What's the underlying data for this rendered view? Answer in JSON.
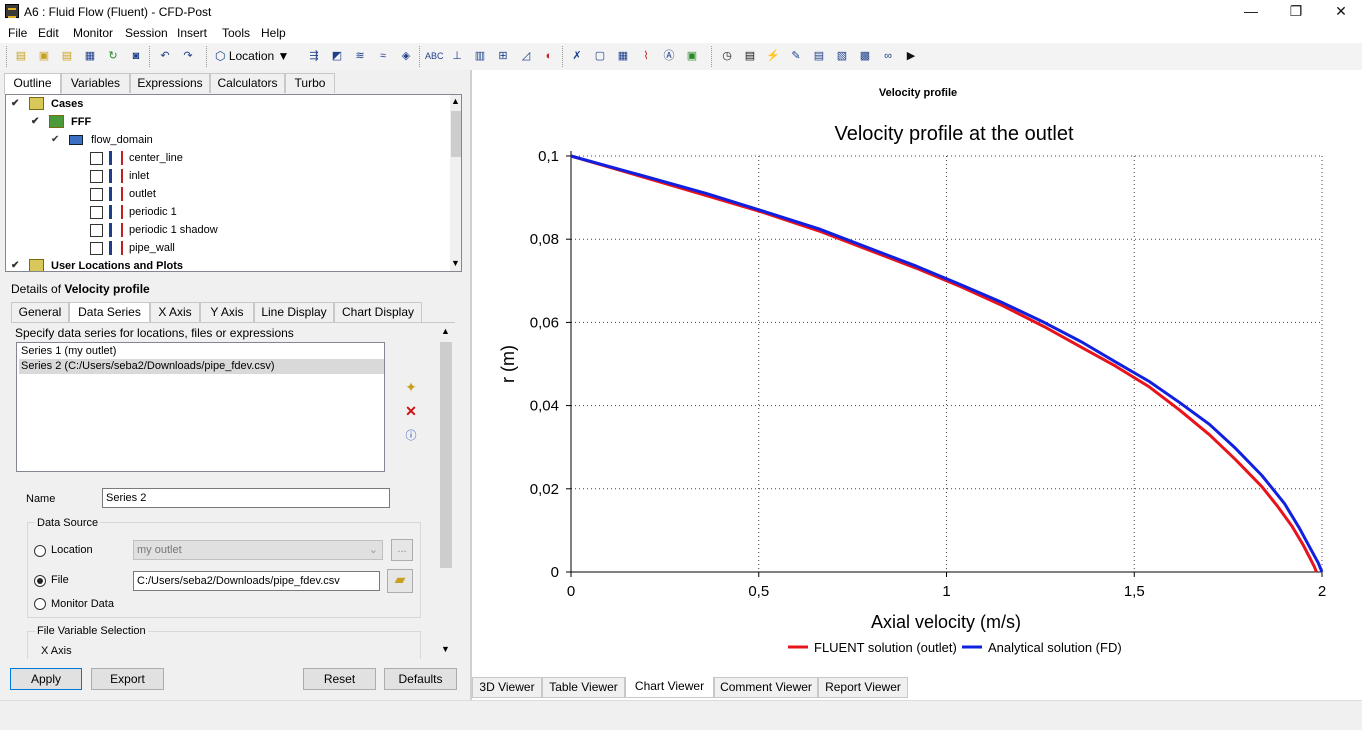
{
  "window": {
    "title": "A6 : Fluid Flow (Fluent) - CFD-Post",
    "minimize": "—",
    "restore": "❐",
    "close": "✕"
  },
  "menu": [
    "File",
    "Edit",
    "Monitor",
    "Session",
    "Insert",
    "Tools",
    "Help"
  ],
  "toolbar": {
    "location_label": "Location"
  },
  "outline_tabs": [
    "Outline",
    "Variables",
    "Expressions",
    "Calculators",
    "Turbo"
  ],
  "tree": {
    "cases": "Cases",
    "case_name": "FFF",
    "domain": "flow_domain",
    "locations": [
      "center_line",
      "inlet",
      "outlet",
      "periodic 1",
      "periodic 1 shadow",
      "pipe_wall"
    ],
    "user_locations": "User Locations and Plots"
  },
  "details": {
    "prefix": "Details of ",
    "object": "Velocity profile",
    "tabs": [
      "General",
      "Data Series",
      "X Axis",
      "Y Axis",
      "Line Display",
      "Chart Display"
    ],
    "hint": "Specify data series for locations, files or expressions",
    "series": [
      "Series 1 (my outlet)",
      "Series 2 (C:/Users/seba2/Downloads/pipe_fdev.csv)"
    ],
    "name_label": "Name",
    "name_value": "Series 2",
    "data_source_label": "Data Source",
    "location_label": "Location",
    "location_value": "my outlet",
    "ellipsis": "...",
    "file_label": "File",
    "file_value": "C:/Users/seba2/Downloads/pipe_fdev.csv",
    "monitor_label": "Monitor Data",
    "file_var_label": "File Variable Selection",
    "x_axis_label": "X Axis"
  },
  "buttons": {
    "apply": "Apply",
    "export": "Export",
    "reset": "Reset",
    "defaults": "Defaults"
  },
  "viewer_tabs": [
    "3D Viewer",
    "Table Viewer",
    "Chart Viewer",
    "Comment Viewer",
    "Report Viewer"
  ],
  "chart_header": "Velocity profile",
  "chart_data": {
    "type": "line",
    "title": "Velocity profile at the outlet",
    "xlabel": "Axial velocity (m/s)",
    "ylabel": "r (m)",
    "xlim": [
      0,
      2
    ],
    "ylim": [
      0,
      0.1
    ],
    "xticks": [
      0,
      0.5,
      1,
      1.5,
      2
    ],
    "xtick_labels": [
      "0",
      "0,5",
      "1",
      "1,5",
      "2"
    ],
    "yticks": [
      0,
      0.02,
      0.04,
      0.06,
      0.08,
      0.1
    ],
    "ytick_labels": [
      "0",
      "0,02",
      "0,04",
      "0,06",
      "0,08",
      "0,1"
    ],
    "grid": true,
    "legend_position": "bottom",
    "series": [
      {
        "name": "FLUENT solution (outlet)",
        "color": "#e8141c",
        "x": [
          0,
          0.19,
          0.36,
          0.51,
          0.66,
          0.79,
          0.92,
          1.04,
          1.15,
          1.26,
          1.36,
          1.45,
          1.54,
          1.62,
          1.7,
          1.77,
          1.84,
          1.88,
          1.92,
          1.95,
          1.97,
          1.98,
          1.985
        ],
        "y": [
          0.1,
          0.095,
          0.0905,
          0.0865,
          0.082,
          0.0775,
          0.073,
          0.0685,
          0.064,
          0.059,
          0.054,
          0.0495,
          0.0445,
          0.039,
          0.033,
          0.027,
          0.0205,
          0.016,
          0.011,
          0.0065,
          0.003,
          0.0012,
          0
        ]
      },
      {
        "name": "Analytical solution (FD)",
        "color": "#1020e0",
        "x": [
          0,
          0.19,
          0.36,
          0.51,
          0.66,
          0.79,
          0.92,
          1.04,
          1.15,
          1.26,
          1.36,
          1.45,
          1.54,
          1.62,
          1.7,
          1.77,
          1.84,
          1.9,
          1.94,
          1.97,
          1.99,
          2.0
        ],
        "y": [
          0.1,
          0.0953,
          0.091,
          0.0868,
          0.0825,
          0.078,
          0.0735,
          0.069,
          0.0647,
          0.06,
          0.0553,
          0.0505,
          0.0458,
          0.0408,
          0.0355,
          0.0297,
          0.0232,
          0.0165,
          0.0105,
          0.0055,
          0.0022,
          0
        ]
      }
    ]
  }
}
